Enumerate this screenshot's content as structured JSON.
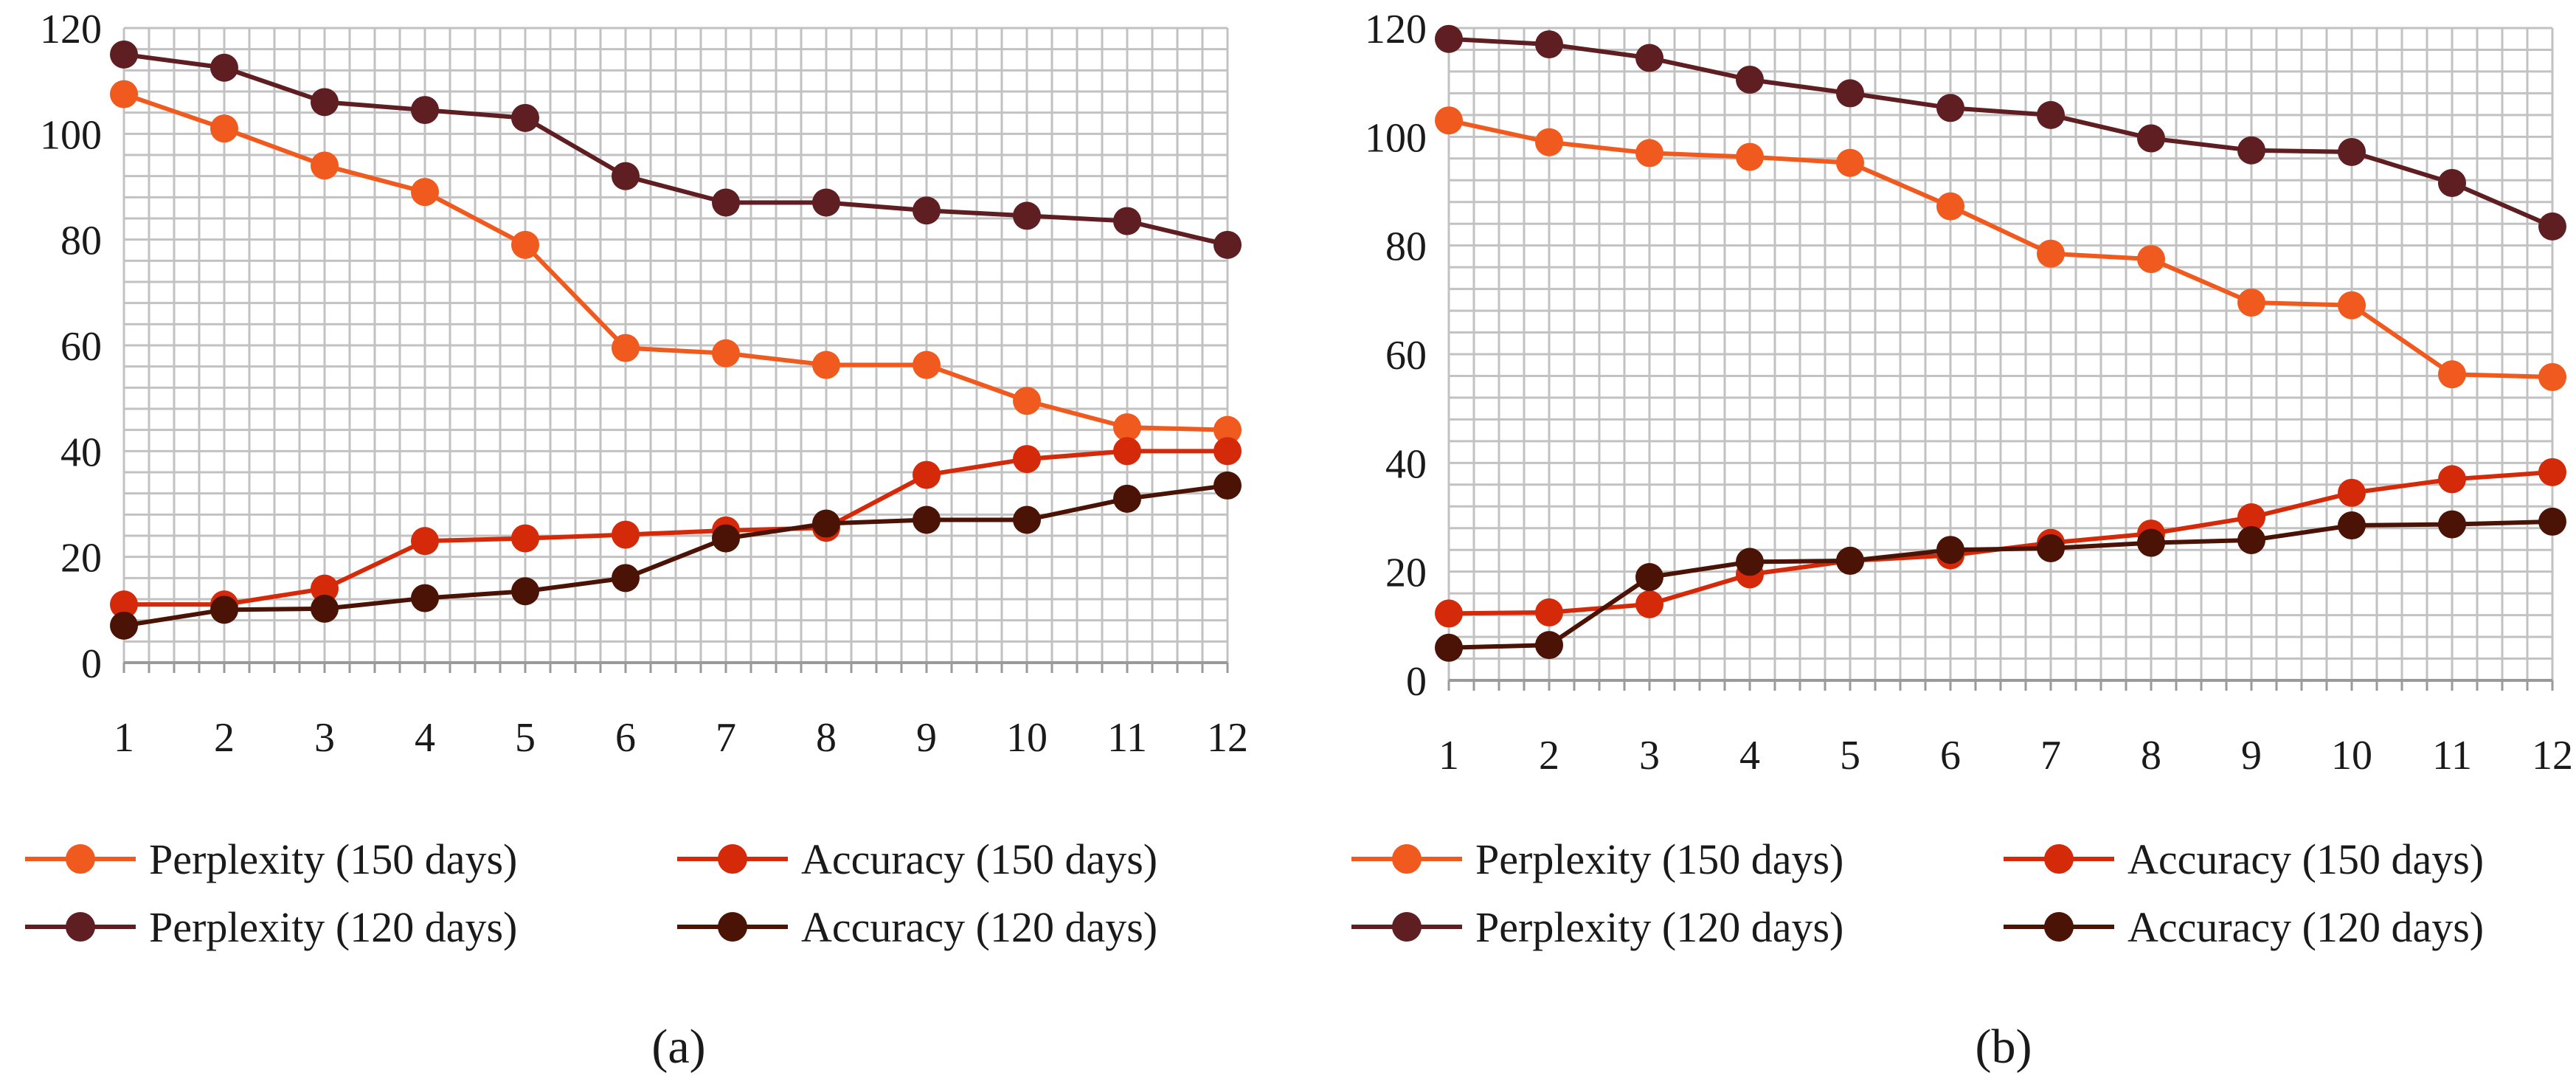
{
  "chart_data": [
    {
      "type": "line",
      "caption": "(a)",
      "x": [
        1,
        2,
        3,
        4,
        5,
        6,
        7,
        8,
        9,
        10,
        11,
        12
      ],
      "ylim": [
        0,
        120
      ],
      "yticks": [
        0,
        20,
        40,
        60,
        80,
        100,
        120
      ],
      "grid": true,
      "legend_position": "bottom",
      "series": [
        {
          "name": "Perplexity (150 days)",
          "color": "#f05a1e",
          "values": [
            107.5,
            101,
            94,
            89,
            79,
            59.5,
            58.5,
            56.3,
            56.3,
            49.5,
            44.5,
            44
          ]
        },
        {
          "name": "Accuracy (150 days)",
          "color": "#d42a0a",
          "values": [
            11,
            11,
            14,
            23,
            23.5,
            24.2,
            25,
            25.5,
            35.5,
            38.5,
            40,
            40
          ]
        },
        {
          "name": "Perplexity (120 days)",
          "color": "#5e1e22",
          "values": [
            115,
            112.5,
            106,
            104.5,
            103,
            92,
            87,
            87,
            85.5,
            84.5,
            83.5,
            79
          ]
        },
        {
          "name": "Accuracy (120 days)",
          "color": "#4a1306",
          "values": [
            7,
            10,
            10.2,
            12.2,
            13.5,
            16,
            23.5,
            26.3,
            27,
            27,
            31,
            33.5
          ]
        }
      ]
    },
    {
      "type": "line",
      "caption": "(b)",
      "x": [
        1,
        2,
        3,
        4,
        5,
        6,
        7,
        8,
        9,
        10,
        11,
        12
      ],
      "ylim": [
        0,
        120
      ],
      "yticks": [
        0,
        20,
        40,
        60,
        80,
        100,
        120
      ],
      "grid": true,
      "legend_position": "bottom",
      "series": [
        {
          "name": "Perplexity (150 days)",
          "color": "#f05a1e",
          "values": [
            103,
            99,
            97,
            96.3,
            95.2,
            87.2,
            78.5,
            77.5,
            69.5,
            69,
            56.3,
            55.8
          ]
        },
        {
          "name": "Accuracy (150 days)",
          "color": "#d42a0a",
          "values": [
            12.3,
            12.5,
            14,
            19.5,
            22,
            23,
            25.3,
            27,
            30,
            34.5,
            37,
            38.3
          ]
        },
        {
          "name": "Perplexity (120 days)",
          "color": "#5e1e22",
          "values": [
            118,
            117,
            114.5,
            110.5,
            108,
            105.3,
            104,
            99.7,
            97.5,
            97.2,
            91.5,
            83.5
          ]
        },
        {
          "name": "Accuracy (120 days)",
          "color": "#4a1306",
          "values": [
            6,
            6.5,
            19,
            21.8,
            22,
            24,
            24.3,
            25.3,
            25.8,
            28.5,
            28.7,
            29.2
          ]
        }
      ]
    }
  ]
}
